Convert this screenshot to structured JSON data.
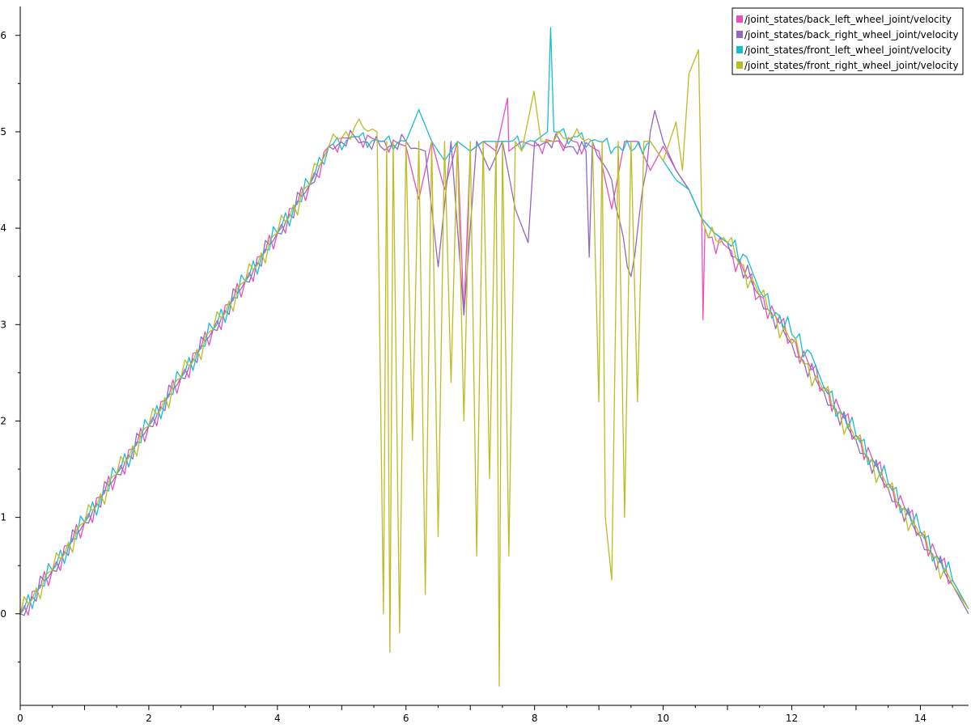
{
  "chart_data": {
    "type": "line",
    "title": "",
    "xlabel": "",
    "ylabel": "",
    "xlim": [
      0,
      14.75
    ],
    "ylim": [
      -0.95,
      6.3
    ],
    "x_ticks": [
      0,
      2,
      4,
      6,
      8,
      10,
      12,
      14
    ],
    "y_ticks": [
      0,
      1,
      2,
      3,
      4,
      5,
      6
    ],
    "grid": false,
    "legend_position": "top-right",
    "series": [
      {
        "name": "/joint_states/back_left_wheel_joint/velocity",
        "color": "#e84fbf",
        "x": [
          0,
          0.5,
          1,
          1.5,
          2,
          2.5,
          3,
          3.5,
          4,
          4.5,
          4.8,
          5.2,
          5.6,
          6.0,
          6.2,
          6.4,
          6.6,
          6.8,
          6.9,
          7.0,
          7.2,
          7.4,
          7.58,
          7.6,
          7.8,
          8.0,
          8.3,
          8.6,
          9.0,
          9.2,
          9.4,
          9.6,
          9.8,
          10.0,
          10.2,
          10.4,
          10.6,
          10.62,
          10.65,
          10.7,
          11.0,
          11.5,
          12.0,
          12.5,
          13.0,
          13.5,
          14.0,
          14.5,
          14.75
        ],
        "y": [
          0.0,
          0.45,
          0.95,
          1.45,
          1.95,
          2.45,
          2.95,
          3.45,
          3.95,
          4.45,
          4.85,
          4.95,
          4.9,
          4.85,
          4.3,
          4.9,
          4.4,
          4.9,
          3.1,
          4.8,
          4.9,
          4.8,
          5.35,
          4.8,
          4.9,
          4.85,
          4.9,
          4.9,
          4.8,
          4.2,
          4.9,
          4.9,
          4.6,
          4.85,
          4.6,
          4.4,
          4.1,
          3.05,
          4.0,
          3.9,
          3.8,
          3.3,
          2.85,
          2.35,
          1.85,
          1.35,
          0.85,
          0.35,
          0.05
        ]
      },
      {
        "name": "/joint_states/back_right_wheel_joint/velocity",
        "color": "#9467bd",
        "x": [
          0,
          0.5,
          1,
          1.5,
          2,
          2.5,
          3,
          3.5,
          4,
          4.5,
          4.8,
          5.2,
          5.6,
          6.0,
          6.3,
          6.5,
          6.7,
          6.9,
          7.1,
          7.3,
          7.5,
          7.7,
          7.9,
          8.0,
          8.4,
          8.8,
          8.85,
          8.9,
          9.2,
          9.5,
          9.8,
          9.87,
          10.0,
          10.2,
          10.4,
          10.6,
          10.8,
          11.0,
          11.5,
          12.0,
          12.5,
          13.0,
          13.5,
          14.0,
          14.5,
          14.75
        ],
        "y": [
          0.0,
          0.45,
          0.95,
          1.45,
          1.95,
          2.45,
          2.95,
          3.45,
          3.95,
          4.45,
          4.85,
          4.95,
          4.85,
          4.9,
          4.8,
          3.6,
          4.9,
          3.1,
          4.9,
          4.6,
          4.9,
          4.2,
          3.85,
          4.9,
          4.9,
          4.8,
          3.7,
          4.9,
          4.5,
          3.5,
          5.0,
          5.22,
          4.9,
          4.6,
          4.4,
          4.1,
          3.95,
          3.85,
          3.3,
          2.8,
          2.3,
          1.8,
          1.3,
          0.8,
          0.3,
          0.0
        ]
      },
      {
        "name": "/joint_states/front_left_wheel_joint/velocity",
        "color": "#17becf",
        "x": [
          0,
          0.5,
          1,
          1.5,
          2,
          2.5,
          3,
          3.5,
          4,
          4.5,
          4.8,
          5.2,
          5.6,
          6.0,
          6.2,
          6.4,
          6.6,
          6.8,
          7.0,
          7.2,
          7.4,
          7.6,
          8.0,
          8.2,
          8.25,
          8.3,
          8.6,
          9.0,
          9.5,
          9.8,
          10.0,
          10.2,
          10.4,
          10.6,
          10.8,
          11.0,
          11.3,
          11.5,
          12.0,
          12.3,
          12.5,
          13.0,
          13.5,
          14.0,
          14.5,
          14.75
        ],
        "y": [
          0.0,
          0.45,
          0.95,
          1.45,
          1.95,
          2.45,
          2.95,
          3.45,
          3.95,
          4.45,
          4.85,
          4.95,
          4.9,
          4.9,
          5.23,
          4.9,
          4.7,
          4.9,
          4.8,
          4.9,
          4.9,
          4.9,
          4.9,
          5.0,
          6.08,
          5.0,
          4.95,
          4.9,
          4.8,
          4.9,
          4.7,
          4.5,
          4.4,
          4.1,
          3.95,
          3.85,
          3.7,
          3.35,
          2.9,
          2.7,
          2.35,
          1.85,
          1.35,
          0.85,
          0.35,
          0.05
        ]
      },
      {
        "name": "/joint_states/front_right_wheel_joint/velocity",
        "color": "#bcbd22",
        "x": [
          0,
          0.5,
          1,
          1.5,
          2,
          2.5,
          3,
          3.5,
          4,
          4.5,
          4.8,
          5.2,
          5.55,
          5.65,
          5.7,
          5.75,
          5.8,
          5.9,
          6.0,
          6.1,
          6.2,
          6.3,
          6.4,
          6.5,
          6.6,
          6.7,
          6.8,
          6.9,
          7.0,
          7.1,
          7.2,
          7.3,
          7.4,
          7.45,
          7.5,
          7.6,
          7.7,
          7.8,
          7.99,
          8.1,
          8.3,
          8.6,
          8.9,
          9.0,
          9.05,
          9.1,
          9.2,
          9.3,
          9.4,
          9.5,
          9.6,
          9.7,
          9.8,
          10.0,
          10.2,
          10.3,
          10.4,
          10.55,
          10.6,
          10.7,
          11.0,
          11.5,
          12.0,
          12.5,
          13.0,
          13.5,
          14.0,
          14.5,
          14.75
        ],
        "y": [
          0.0,
          0.45,
          0.95,
          1.45,
          1.95,
          2.45,
          2.95,
          3.45,
          3.95,
          4.45,
          4.85,
          5.05,
          5.0,
          0.0,
          4.9,
          -0.4,
          4.9,
          -0.2,
          4.9,
          1.8,
          4.9,
          0.2,
          4.9,
          0.8,
          4.9,
          2.4,
          4.9,
          2.0,
          4.9,
          0.6,
          4.9,
          1.4,
          4.9,
          -0.75,
          4.9,
          0.6,
          4.9,
          4.8,
          5.42,
          4.9,
          4.9,
          4.95,
          4.9,
          2.2,
          4.9,
          1.0,
          0.35,
          4.9,
          1.0,
          4.9,
          2.2,
          4.9,
          4.9,
          4.7,
          5.1,
          4.6,
          5.6,
          5.85,
          4.1,
          3.9,
          3.85,
          3.3,
          2.8,
          2.3,
          1.8,
          1.3,
          0.8,
          0.3,
          0.05
        ]
      }
    ]
  }
}
